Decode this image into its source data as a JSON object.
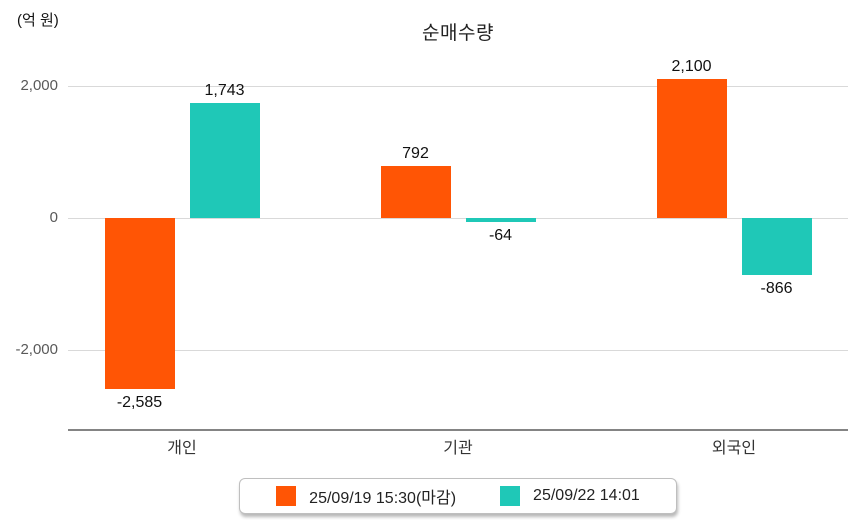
{
  "chart_data": {
    "type": "bar",
    "title": "순매수량",
    "unit_label": "(억 원)",
    "categories": [
      "개인",
      "기관",
      "외국인"
    ],
    "series": [
      {
        "name": "25/09/19 15:30(마감)",
        "color": "#FF5505",
        "values": [
          -2585,
          792,
          2100
        ],
        "value_labels": [
          "-2,585",
          "792",
          "2,100"
        ]
      },
      {
        "name": "25/09/22 14:01",
        "color": "#1FC8B7",
        "values": [
          1743,
          -64,
          -866
        ],
        "value_labels": [
          "1,743",
          "-64",
          "-866"
        ]
      }
    ],
    "y_ticks": [
      {
        "value": 2000,
        "label": "2,000"
      },
      {
        "value": 0,
        "label": "0"
      },
      {
        "value": -2000,
        "label": "-2,000"
      }
    ],
    "ylim": [
      -3100,
      2300
    ],
    "grid": true,
    "legend_position": "bottom",
    "colors": {
      "gridline": "#d9d9d9",
      "axis_line": "#848484",
      "tick_text": "#595959",
      "value_text": "#111111"
    }
  }
}
